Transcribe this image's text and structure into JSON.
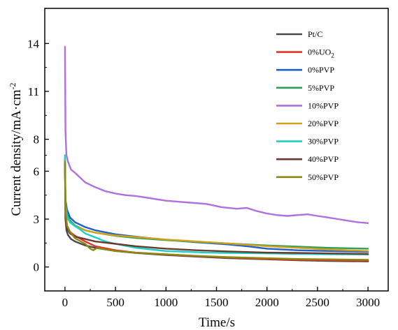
{
  "chart_data": {
    "type": "line",
    "title": "",
    "xlabel": "Time/s",
    "ylabel": "Current density/mA·cm⁻²",
    "ylabel_parts": {
      "text": "Current density/mA·cm",
      "sup": "-2"
    },
    "xlim": [
      -200,
      3200
    ],
    "ylim": [
      -1.5,
      16.2
    ],
    "xticks": [
      0,
      500,
      1000,
      1500,
      2000,
      2500,
      3000
    ],
    "xtick_labels": [
      "0",
      "500",
      "1000",
      "1500",
      "2000",
      "2500",
      "3000"
    ],
    "yticks": [
      0,
      3,
      6,
      8,
      11,
      14
    ],
    "ytick_labels": [
      "0",
      "3",
      "6",
      "8",
      "11",
      "14"
    ],
    "grid": false,
    "legend_position": "top-right",
    "series": [
      {
        "name": "Pt/C",
        "label_main": "Pt/C",
        "label_sub": "",
        "color": "#4a4a4a",
        "x": [
          0,
          5,
          15,
          30,
          60,
          100,
          200,
          300,
          500,
          700,
          1000,
          1300,
          1600,
          2000,
          2300,
          2600,
          3000
        ],
        "y": [
          6.8,
          3.0,
          2.3,
          2.0,
          1.75,
          1.6,
          1.35,
          1.2,
          1.0,
          0.88,
          0.75,
          0.65,
          0.56,
          0.48,
          0.42,
          0.38,
          0.35
        ]
      },
      {
        "name": "0%UO2",
        "label_main": "0%UO",
        "label_sub": "2",
        "color": "#e8302a",
        "x": [
          0,
          5,
          20,
          50,
          100,
          200,
          300,
          500,
          700,
          1000,
          1300,
          1600,
          2000,
          2300,
          2600,
          3000
        ],
        "y": [
          6.5,
          3.5,
          2.6,
          2.2,
          1.95,
          1.6,
          1.3,
          1.05,
          0.9,
          0.78,
          0.68,
          0.6,
          0.5,
          0.46,
          0.42,
          0.4
        ]
      },
      {
        "name": "0%PVP",
        "label_main": "0%PVP",
        "label_sub": "",
        "color": "#1f5fd0",
        "x": [
          0,
          5,
          20,
          50,
          100,
          200,
          300,
          500,
          700,
          1000,
          1300,
          1600,
          1800,
          2000,
          2300,
          2600,
          3000
        ],
        "y": [
          6.6,
          4.2,
          3.6,
          3.1,
          2.8,
          2.5,
          2.3,
          2.05,
          1.9,
          1.7,
          1.55,
          1.42,
          1.3,
          1.15,
          1.05,
          1.0,
          0.95
        ]
      },
      {
        "name": "5%PVP",
        "label_main": "5%PVP",
        "label_sub": "",
        "color": "#2ca05a",
        "x": [
          0,
          5,
          20,
          50,
          100,
          200,
          300,
          500,
          700,
          1000,
          1300,
          1600,
          2000,
          2300,
          2600,
          3000
        ],
        "y": [
          6.7,
          4.0,
          3.3,
          2.9,
          2.6,
          2.3,
          2.15,
          1.95,
          1.82,
          1.68,
          1.58,
          1.48,
          1.35,
          1.28,
          1.2,
          1.15
        ]
      },
      {
        "name": "10%PVP",
        "label_main": "10%PVP",
        "label_sub": "",
        "color": "#b070e0",
        "x": [
          0,
          5,
          15,
          30,
          60,
          100,
          150,
          200,
          300,
          400,
          500,
          600,
          700,
          800,
          900,
          1000,
          1200,
          1400,
          1550,
          1700,
          1800,
          1900,
          2000,
          2100,
          2200,
          2300,
          2400,
          2500,
          2600,
          2700,
          2800,
          2900,
          3000
        ],
        "y": [
          13.8,
          8.5,
          7.0,
          6.6,
          6.1,
          5.9,
          5.6,
          5.3,
          5.0,
          4.75,
          4.6,
          4.5,
          4.45,
          4.35,
          4.25,
          4.15,
          4.05,
          3.95,
          3.75,
          3.65,
          3.7,
          3.5,
          3.35,
          3.25,
          3.2,
          3.25,
          3.3,
          3.2,
          3.1,
          3.0,
          2.9,
          2.8,
          2.75
        ]
      },
      {
        "name": "20%PVP",
        "label_main": "20%PVP",
        "label_sub": "",
        "color": "#d4a017",
        "x": [
          0,
          5,
          20,
          50,
          100,
          200,
          300,
          500,
          700,
          1000,
          1300,
          1600,
          2000,
          2300,
          2600,
          3000
        ],
        "y": [
          6.6,
          3.8,
          3.1,
          2.8,
          2.55,
          2.3,
          2.15,
          1.98,
          1.88,
          1.72,
          1.6,
          1.48,
          1.3,
          1.2,
          1.1,
          1.0
        ]
      },
      {
        "name": "30%PVP",
        "label_main": "30%PVP",
        "label_sub": "",
        "color": "#1ad0c8",
        "x": [
          0,
          5,
          20,
          50,
          100,
          150,
          200,
          300,
          400,
          500,
          700,
          1000,
          1200,
          1400,
          1600,
          2000,
          2300,
          2600,
          3000
        ],
        "y": [
          7.0,
          4.0,
          3.2,
          2.8,
          2.55,
          2.35,
          2.1,
          1.85,
          1.6,
          1.45,
          1.2,
          1.0,
          0.95,
          0.9,
          0.88,
          0.85,
          0.82,
          0.8,
          0.78
        ]
      },
      {
        "name": "40%PVP",
        "label_main": "40%PVP",
        "label_sub": "",
        "color": "#6b3a2e",
        "x": [
          0,
          5,
          20,
          50,
          100,
          200,
          300,
          500,
          700,
          1000,
          1300,
          1600,
          2000,
          2300,
          2600,
          3000
        ],
        "y": [
          6.5,
          3.0,
          2.4,
          2.1,
          1.9,
          1.75,
          1.6,
          1.45,
          1.3,
          1.15,
          1.05,
          0.98,
          0.9,
          0.88,
          0.85,
          0.82
        ]
      },
      {
        "name": "50%PVP",
        "label_main": "50%PVP",
        "label_sub": "",
        "color": "#8a8a10",
        "x": [
          0,
          5,
          20,
          50,
          100,
          200,
          250,
          280,
          320,
          400,
          500,
          700,
          1000,
          1300,
          1600,
          2000,
          2300,
          2600,
          3000
        ],
        "y": [
          6.6,
          3.5,
          2.6,
          2.2,
          1.8,
          1.45,
          1.15,
          1.05,
          1.2,
          1.1,
          1.0,
          0.9,
          0.8,
          0.7,
          0.62,
          0.55,
          0.5,
          0.48,
          0.45
        ]
      }
    ]
  }
}
